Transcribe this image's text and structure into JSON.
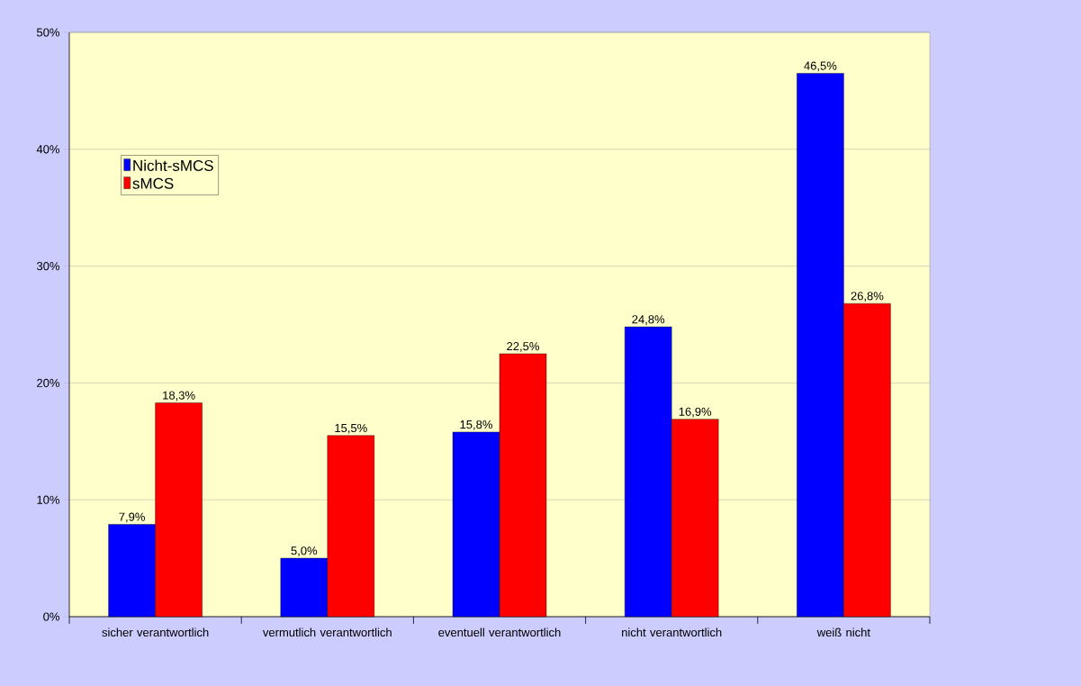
{
  "chart_data": {
    "type": "bar",
    "categories": [
      "sicher verantwortlich",
      "vermutlich verantwortlich",
      "eventuell verantwortlich",
      "nicht verantwortlich",
      "weiß nicht"
    ],
    "series": [
      {
        "name": "Nicht-sMCS",
        "color": "#0000ff",
        "values": [
          7.9,
          5.0,
          15.8,
          24.8,
          46.5
        ],
        "value_labels": [
          "7,9%",
          "5,0%",
          "15,8%",
          "24,8%",
          "46,5%"
        ]
      },
      {
        "name": "sMCS",
        "color": "#ff0000",
        "values": [
          18.3,
          15.5,
          22.5,
          16.9,
          26.8
        ],
        "value_labels": [
          "18,3%",
          "15,5%",
          "22,5%",
          "16,9%",
          "26,8%"
        ]
      }
    ],
    "ylim": [
      0,
      50
    ],
    "yticks": [
      {
        "value": 0,
        "label": "0%"
      },
      {
        "value": 10,
        "label": "10%"
      },
      {
        "value": 20,
        "label": "20%"
      },
      {
        "value": 30,
        "label": "30%"
      },
      {
        "value": 40,
        "label": "40%"
      },
      {
        "value": 50,
        "label": "50%"
      }
    ],
    "grid": "y",
    "legend": "top left"
  }
}
